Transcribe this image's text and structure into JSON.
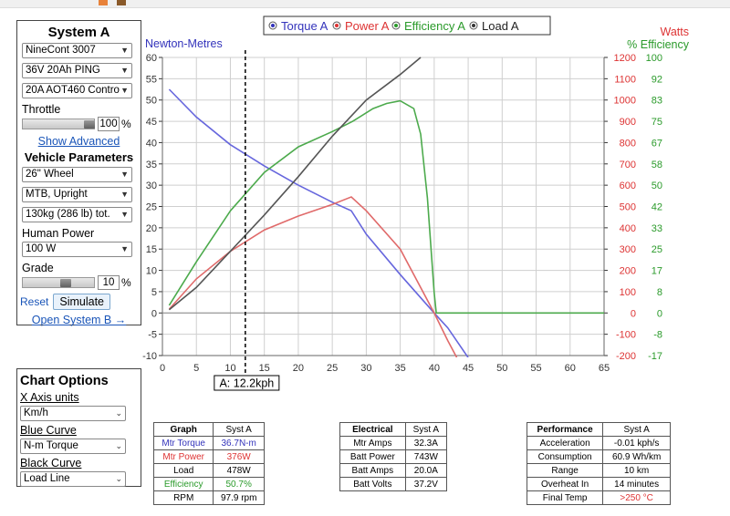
{
  "system_a": {
    "title": "System A",
    "motor": "NineCont 3007",
    "battery": "36V 20Ah PING",
    "controller": "20A AOT460 Contro",
    "throttle_label": "Throttle",
    "throttle_value": "100",
    "throttle_level": 1.0,
    "throttle_unit": "%",
    "show_advanced": "Show Advanced",
    "vehicle_params_label": "Vehicle Parameters",
    "wheel": "26\"  Wheel",
    "riding_style": "MTB, Upright",
    "weight": "130kg (286 lb) tot.",
    "human_power_label": "Human Power",
    "human_power": "100 W",
    "grade_label": "Grade",
    "grade_value": "10",
    "grade_level": 0.6,
    "grade_unit": "%",
    "reset": "Reset",
    "simulate": "Simulate",
    "open_system_b": "Open System B →"
  },
  "chart_options": {
    "title": "Chart Options",
    "x_axis_label": "X Axis units",
    "x_axis_value": "Km/h",
    "blue_curve_label": "Blue Curve",
    "blue_curve_value": "N-m Torque",
    "black_curve_label": "Black Curve",
    "black_curve_value": "Load Line"
  },
  "chart_data": {
    "type": "line",
    "legend": [
      "Torque A",
      "Power A",
      "Efficiency A",
      "Load A"
    ],
    "legend_placement": "top-center",
    "left_axis_title": "Newton-Metres",
    "right_axis_title_1": "Watts",
    "right_axis_title_2": "% Efficiency",
    "xlim": [
      0,
      65
    ],
    "x_ticks": [
      "0",
      "5",
      "10",
      "15",
      "20",
      "25",
      "30",
      "35",
      "40",
      "45",
      "50",
      "55",
      "60",
      "65"
    ],
    "left_ylim": [
      -10,
      60
    ],
    "left_ticks": [
      "60",
      "55",
      "50",
      "45",
      "40",
      "35",
      "30",
      "25",
      "20",
      "15",
      "10",
      "5",
      "0",
      "-5",
      "-10"
    ],
    "watts_ticks": [
      "1200",
      "1100",
      "1000",
      "900",
      "800",
      "700",
      "600",
      "500",
      "400",
      "300",
      "200",
      "100",
      "0",
      "-100",
      "-200"
    ],
    "eff_ticks": [
      "100",
      "92",
      "83",
      "75",
      "67",
      "58",
      "50",
      "42",
      "33",
      "25",
      "17",
      "8",
      "0",
      "-8",
      "-17"
    ],
    "grid": true,
    "cursor_x": 12.2,
    "cursor_label": "A: 12.2kph",
    "series": [
      {
        "name": "Torque A",
        "axis": "nm",
        "color": "#6666dd",
        "x": [
          1,
          5,
          10,
          15,
          20,
          25,
          27.8,
          30,
          35,
          40,
          42,
          45
        ],
        "y": [
          52.5,
          46,
          39.5,
          34.5,
          30,
          26,
          24,
          18.5,
          9,
          0,
          -3.5,
          -10.5
        ]
      },
      {
        "name": "Power A",
        "axis": "watts",
        "color": "#e06a6a",
        "x": [
          1,
          5,
          10,
          15,
          20,
          25,
          27.8,
          30,
          35,
          40,
          42,
          44
        ],
        "y": [
          18,
          160,
          290,
          390,
          455,
          510,
          545,
          480,
          300,
          0,
          -130,
          -250
        ]
      },
      {
        "name": "Efficiency A",
        "axis": "eff",
        "color": "#4caa4c",
        "x": [
          1,
          5,
          10,
          15,
          20,
          25,
          28,
          31,
          33,
          35,
          37,
          38,
          39,
          40,
          40.3,
          45,
          65
        ],
        "y": [
          3,
          20,
          40,
          55,
          65,
          71,
          75,
          80,
          82,
          83,
          80,
          70,
          45,
          8,
          0,
          0,
          0
        ]
      },
      {
        "name": "Load A",
        "axis": "watts",
        "color": "#555555",
        "x": [
          1,
          5,
          10,
          15,
          20,
          25,
          30,
          35,
          38
        ],
        "y": [
          15,
          120,
          290,
          460,
          640,
          830,
          1000,
          1120,
          1200
        ]
      }
    ]
  },
  "graph_table": {
    "headers": [
      "Graph",
      "Syst A"
    ],
    "rows": [
      {
        "label": "Mtr Torque",
        "value": "36.7N-m",
        "color": "#3333bb"
      },
      {
        "label": "Mtr Power",
        "value": "376W",
        "color": "#dd3333"
      },
      {
        "label": "Load",
        "value": "478W",
        "color": "#000000"
      },
      {
        "label": "Efficiency",
        "value": "50.7%",
        "color": "#2a9a2a"
      },
      {
        "label": "RPM",
        "value": "97.9 rpm",
        "color": "#000000"
      }
    ]
  },
  "electrical_table": {
    "headers": [
      "Electrical",
      "Syst A"
    ],
    "rows": [
      {
        "label": "Mtr Amps",
        "value": "32.3A"
      },
      {
        "label": "Batt Power",
        "value": "743W"
      },
      {
        "label": "Batt Amps",
        "value": "20.0A"
      },
      {
        "label": "Batt Volts",
        "value": "37.2V"
      }
    ]
  },
  "performance_table": {
    "headers": [
      "Performance",
      "Syst A"
    ],
    "rows": [
      {
        "label": "Acceleration",
        "value": "-0.01 kph/s",
        "color": "#000000"
      },
      {
        "label": "Consumption",
        "value": "60.9 Wh/km",
        "color": "#000000"
      },
      {
        "label": "Range",
        "value": "10 km",
        "color": "#000000"
      },
      {
        "label": "Overheat In",
        "value": "14 minutes",
        "color": "#000000"
      },
      {
        "label": "Final Temp",
        "value": ">250 °C",
        "color": "#dd3333"
      }
    ]
  }
}
